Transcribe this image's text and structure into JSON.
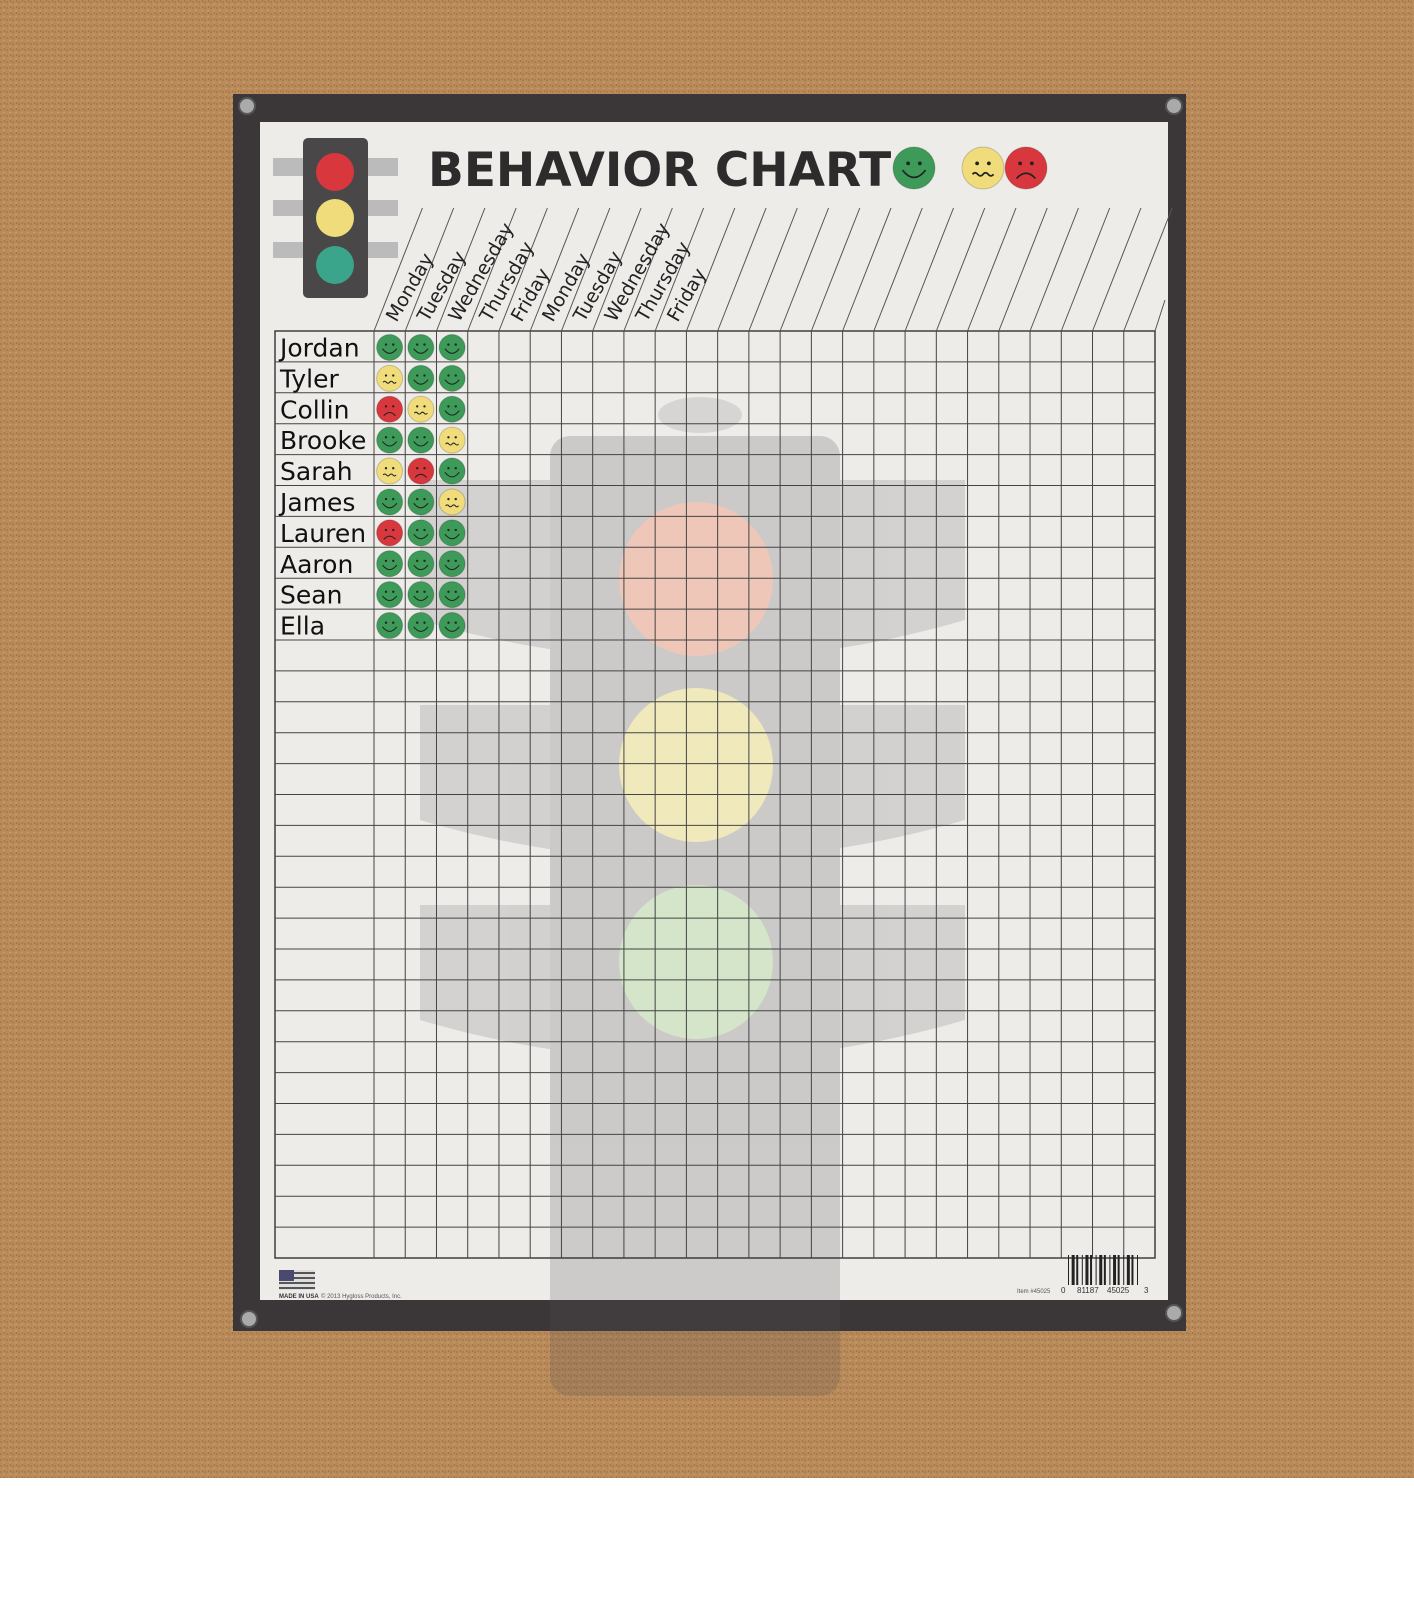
{
  "poster": {
    "title": "BEHAVIOR CHART",
    "legend_faces": [
      "green-happy-face",
      "yellow-worried-face",
      "red-sad-face"
    ],
    "day_headers": [
      "Monday",
      "Tuesday",
      "Wednesday",
      "Thursday",
      "Friday",
      "Monday",
      "Tuesday",
      "Wednesday",
      "Thursday",
      "Friday"
    ],
    "students": [
      {
        "name": "Jordan",
        "marks": [
          "green",
          "green",
          "green"
        ]
      },
      {
        "name": "Tyler",
        "marks": [
          "yellow",
          "green",
          "green"
        ]
      },
      {
        "name": "Collin",
        "marks": [
          "red",
          "yellow",
          "green"
        ]
      },
      {
        "name": "Brooke",
        "marks": [
          "green",
          "green",
          "yellow"
        ]
      },
      {
        "name": "Sarah",
        "marks": [
          "yellow",
          "red",
          "green"
        ]
      },
      {
        "name": "James",
        "marks": [
          "green",
          "green",
          "yellow"
        ]
      },
      {
        "name": "Lauren",
        "marks": [
          "red",
          "green",
          "green"
        ]
      },
      {
        "name": "Aaron",
        "marks": [
          "green",
          "green",
          "green"
        ]
      },
      {
        "name": "Sean",
        "marks": [
          "green",
          "green",
          "green"
        ]
      },
      {
        "name": "Ella",
        "marks": [
          "green",
          "green",
          "green"
        ]
      }
    ],
    "footer": {
      "made_in": "MADE IN USA",
      "copyright": "© 2013 Hygloss Products, Inc.",
      "item": "Item #45025",
      "barcode_digits": [
        "0",
        "81187",
        "45025",
        "3"
      ]
    }
  },
  "colors": {
    "cork": "#b98a5a",
    "frame": "#3b3638",
    "paper": "#eeece9",
    "green": "#3d9a58",
    "yellow": "#f0dc7a",
    "red": "#d8383d"
  }
}
